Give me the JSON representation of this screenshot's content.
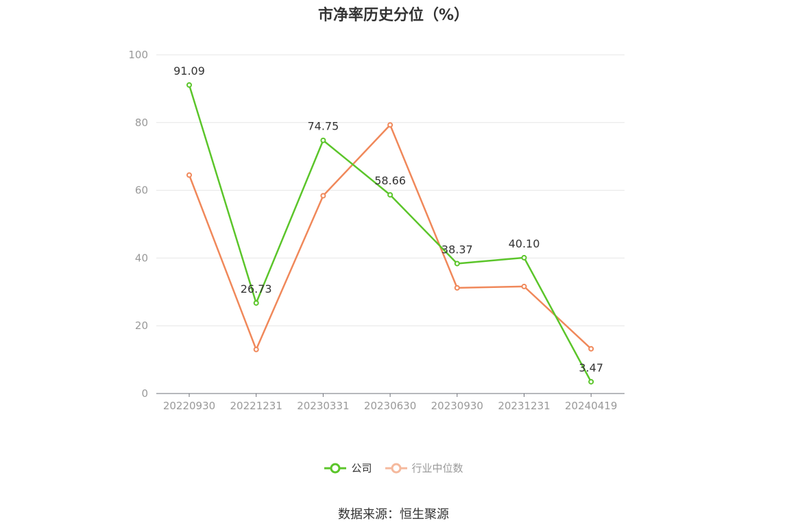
{
  "chart_data": {
    "type": "line",
    "title": "市净率历史分位（%）",
    "categories": [
      "20220930",
      "20221231",
      "20230331",
      "20230630",
      "20230930",
      "20231231",
      "20240419"
    ],
    "series": [
      {
        "name": "公司",
        "color": "#5bc52a",
        "values": [
          91.09,
          26.73,
          74.75,
          58.66,
          38.37,
          40.1,
          3.47
        ],
        "labels": [
          "91.09",
          "26.73",
          "74.75",
          "58.66",
          "38.37",
          "40.10",
          "3.47"
        ]
      },
      {
        "name": "行业中位数",
        "color": "#f0885a",
        "values": [
          64.5,
          13.0,
          58.4,
          79.3,
          31.2,
          31.6,
          13.2
        ]
      }
    ],
    "ylim": [
      0,
      100
    ],
    "yticks": [
      0,
      20,
      40,
      60,
      80,
      100
    ],
    "grid": true,
    "legend": "bottom-center"
  },
  "source_text": "数据来源：恒生聚源"
}
